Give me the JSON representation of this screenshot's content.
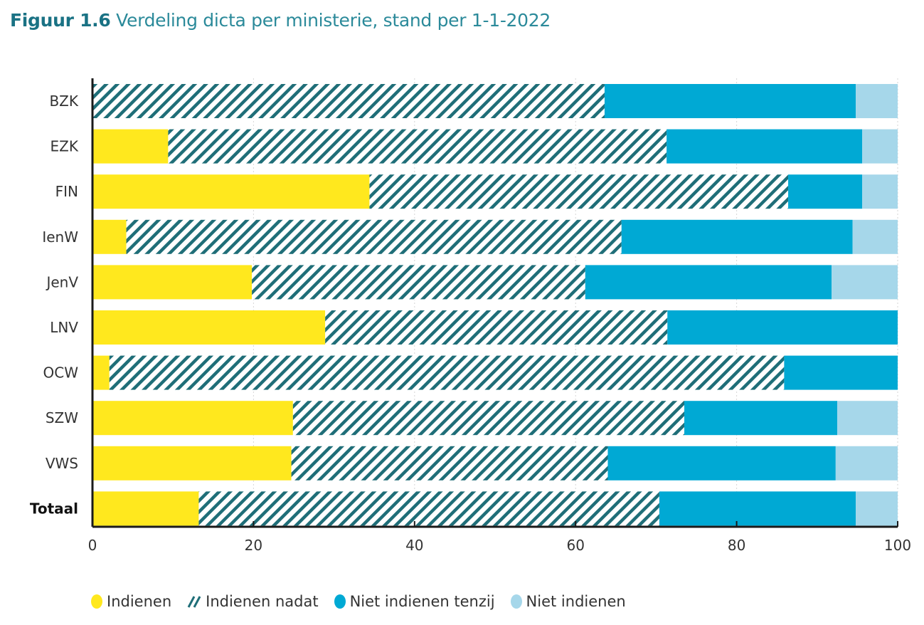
{
  "title": {
    "figure_number": "Figuur 1.6",
    "text": "Verdeling dicta per ministerie, stand per 1-1-2022"
  },
  "colors": {
    "indienen": "#ffe81e",
    "indienen_nadat": "#1f6e78",
    "niet_indienen_tenzij": "#00a9d4",
    "niet_indienen": "#a6d7ea",
    "title_accent": "#1a7284"
  },
  "chart_data": {
    "type": "bar",
    "orientation": "horizontal",
    "stacked": true,
    "title": "Figuur 1.6 Verdeling dicta per ministerie, stand per 1-1-2022",
    "xlabel": "",
    "ylabel": "",
    "xlim": [
      0,
      100
    ],
    "x_ticks": [
      "0",
      "20",
      "40",
      "60",
      "80",
      "100"
    ],
    "grid": "vertical dotted at ticks",
    "legend_position": "bottom",
    "categories": [
      "BZK",
      "EZK",
      "FIN",
      "IenW",
      "JenV",
      "LNV",
      "OCW",
      "SZW",
      "VWS",
      "Totaal"
    ],
    "series": [
      {
        "name": "Indienen",
        "pattern": "solid",
        "values": [
          0,
          9.4,
          34.4,
          4.2,
          19.8,
          28.9,
          2.1,
          24.9,
          24.7,
          13.2
        ]
      },
      {
        "name": "Indienen nadat",
        "pattern": "hatched",
        "values": [
          63.6,
          61.9,
          52.0,
          61.5,
          41.4,
          42.5,
          83.8,
          48.6,
          39.3,
          57.2
        ]
      },
      {
        "name": "Niet indienen tenzij",
        "pattern": "solid",
        "values": [
          31.2,
          24.3,
          9.2,
          28.7,
          30.6,
          28.6,
          14.1,
          19.0,
          28.3,
          24.4
        ]
      },
      {
        "name": "Niet indienen",
        "pattern": "solid",
        "values": [
          5.2,
          4.4,
          4.4,
          5.6,
          8.2,
          0,
          0,
          7.5,
          7.7,
          5.2
        ]
      }
    ]
  },
  "legend": [
    {
      "label": "Indienen",
      "key": "indienen"
    },
    {
      "label": "Indienen nadat",
      "key": "indienen_nadat"
    },
    {
      "label": "Niet indienen tenzij",
      "key": "niet_indienen_tenzij"
    },
    {
      "label": "Niet indienen",
      "key": "niet_indienen"
    }
  ]
}
